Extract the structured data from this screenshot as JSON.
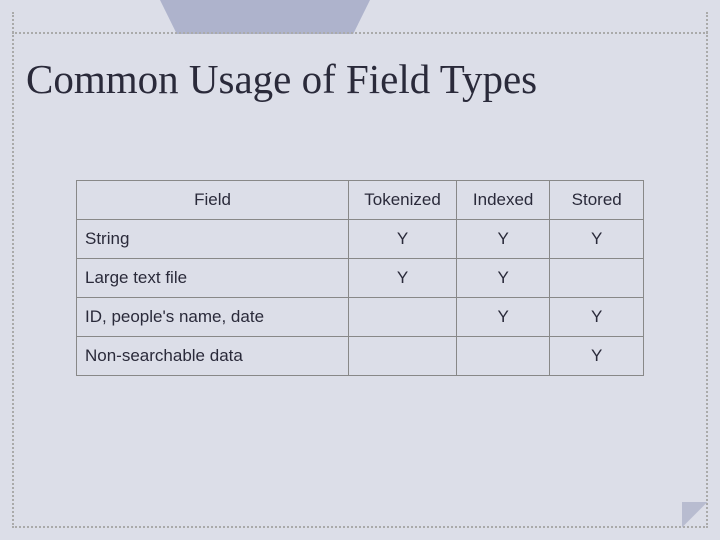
{
  "title": "Common Usage of Field Types",
  "table": {
    "headers": {
      "field": "Field",
      "tokenized": "Tokenized",
      "indexed": "Indexed",
      "stored": "Stored"
    },
    "rows": [
      {
        "label": "String",
        "tokenized": "Y",
        "indexed": "Y",
        "stored": "Y"
      },
      {
        "label": "Large text file",
        "tokenized": "Y",
        "indexed": "Y",
        "stored": ""
      },
      {
        "label": "ID, people's name, date",
        "tokenized": "",
        "indexed": "Y",
        "stored": "Y"
      },
      {
        "label": "Non-searchable data",
        "tokenized": "",
        "indexed": "",
        "stored": "Y"
      }
    ]
  },
  "style": {
    "background": "#dcdee8",
    "tab_color": "#aeb3cc",
    "title_fontsize": 41,
    "cell_fontsize": 17,
    "border_color": "#888888",
    "text_color": "#2a2a3a",
    "dotted_color": "#aaaaaa"
  }
}
